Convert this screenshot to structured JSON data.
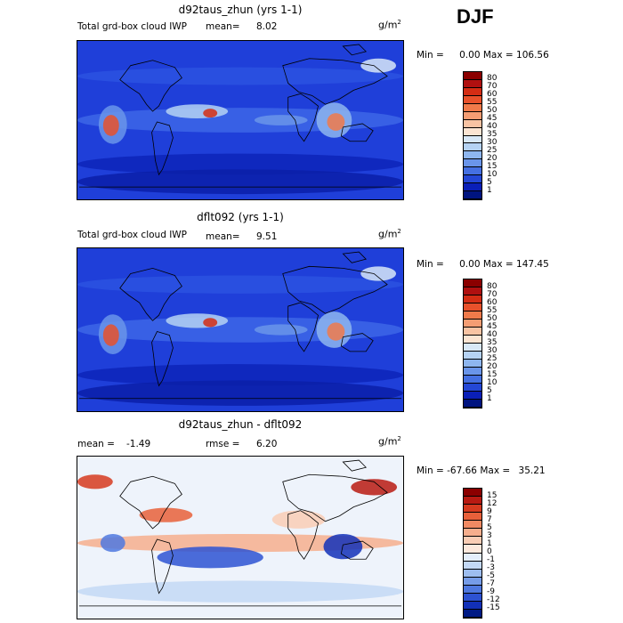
{
  "season": "DJF",
  "unit_base": "g/m",
  "unit_exp": "2",
  "panels": [
    {
      "title": "d92taus_zhun (yrs 1-1)",
      "subtitle": "Total grd-box cloud IWP",
      "stat1": "mean=",
      "stat1_value": "8.02",
      "stat2": "",
      "stat2_value": "",
      "min_label": "Min =",
      "min_value": "0.00",
      "max_label": "Max =",
      "max_value": "106.56",
      "colorbar": {
        "labels": [
          "80",
          "70",
          "60",
          "55",
          "50",
          "45",
          "40",
          "35",
          "30",
          "25",
          "20",
          "15",
          "10",
          "5",
          "1"
        ],
        "colors": [
          "#8b0000",
          "#b01010",
          "#d42d14",
          "#e8512b",
          "#f07a4a",
          "#f49d73",
          "#f8c3a3",
          "#fbe4d2",
          "#d8e8f7",
          "#b5d2f3",
          "#8eb6ef",
          "#6a95ea",
          "#4570e2",
          "#2447d6",
          "#0a1fb8",
          "#001480"
        ]
      }
    },
    {
      "title": "dflt092 (yrs 1-1)",
      "subtitle": "Total grd-box cloud IWP",
      "stat1": "mean=",
      "stat1_value": "9.51",
      "stat2": "",
      "stat2_value": "",
      "min_label": "Min =",
      "min_value": "0.00",
      "max_label": "Max =",
      "max_value": "147.45",
      "colorbar": {
        "labels": [
          "80",
          "70",
          "60",
          "55",
          "50",
          "45",
          "40",
          "35",
          "30",
          "25",
          "20",
          "15",
          "10",
          "5",
          "1"
        ],
        "colors": [
          "#8b0000",
          "#b01010",
          "#d42d14",
          "#e8512b",
          "#f07a4a",
          "#f49d73",
          "#f8c3a3",
          "#fbe4d2",
          "#d8e8f7",
          "#b5d2f3",
          "#8eb6ef",
          "#6a95ea",
          "#4570e2",
          "#2447d6",
          "#0a1fb8",
          "#001480"
        ]
      }
    },
    {
      "title": "d92taus_zhun - dflt092",
      "subtitle": "",
      "stat1": "mean =",
      "stat1_value": "-1.49",
      "stat2": "rmse =",
      "stat2_value": "6.20",
      "min_label": "Min =",
      "min_value": "-67.66",
      "max_label": "Max =",
      "max_value": "35.21",
      "colorbar": {
        "labels": [
          "15",
          "12",
          "9",
          "7",
          "5",
          "3",
          "1",
          "0",
          "-1",
          "-3",
          "-5",
          "-7",
          "-9",
          "-12",
          "-15"
        ],
        "colors": [
          "#8b0000",
          "#b81a12",
          "#d63a1f",
          "#e8603a",
          "#f18a63",
          "#f6ae8d",
          "#f9cdb5",
          "#fde9dd",
          "#e4eefb",
          "#c3d8f5",
          "#9dbdef",
          "#769ce8",
          "#4f78df",
          "#2d52d2",
          "#1230b8",
          "#001a85"
        ]
      }
    }
  ],
  "chart_data": [
    {
      "type": "heatmap",
      "title": "d92taus_zhun (yrs 1-1)",
      "subtitle": "Total grd-box cloud IWP",
      "mean": 8.02,
      "min": 0.0,
      "max": 106.56,
      "contour_levels": [
        1,
        5,
        10,
        15,
        20,
        25,
        30,
        35,
        40,
        45,
        50,
        55,
        60,
        70,
        80
      ]
    },
    {
      "type": "heatmap",
      "title": "dflt092 (yrs 1-1)",
      "subtitle": "Total grd-box cloud IWP",
      "mean": 9.51,
      "min": 0.0,
      "max": 147.45,
      "contour_levels": [
        1,
        5,
        10,
        15,
        20,
        25,
        30,
        35,
        40,
        45,
        50,
        55,
        60,
        70,
        80
      ]
    },
    {
      "type": "heatmap",
      "title": "d92taus_zhun - dflt092",
      "mean": -1.49,
      "rmse": 6.2,
      "min": -67.66,
      "max": 35.21,
      "contour_levels": [
        -15,
        -12,
        -9,
        -7,
        -5,
        -3,
        -1,
        0,
        1,
        3,
        5,
        7,
        9,
        12,
        15
      ]
    }
  ]
}
